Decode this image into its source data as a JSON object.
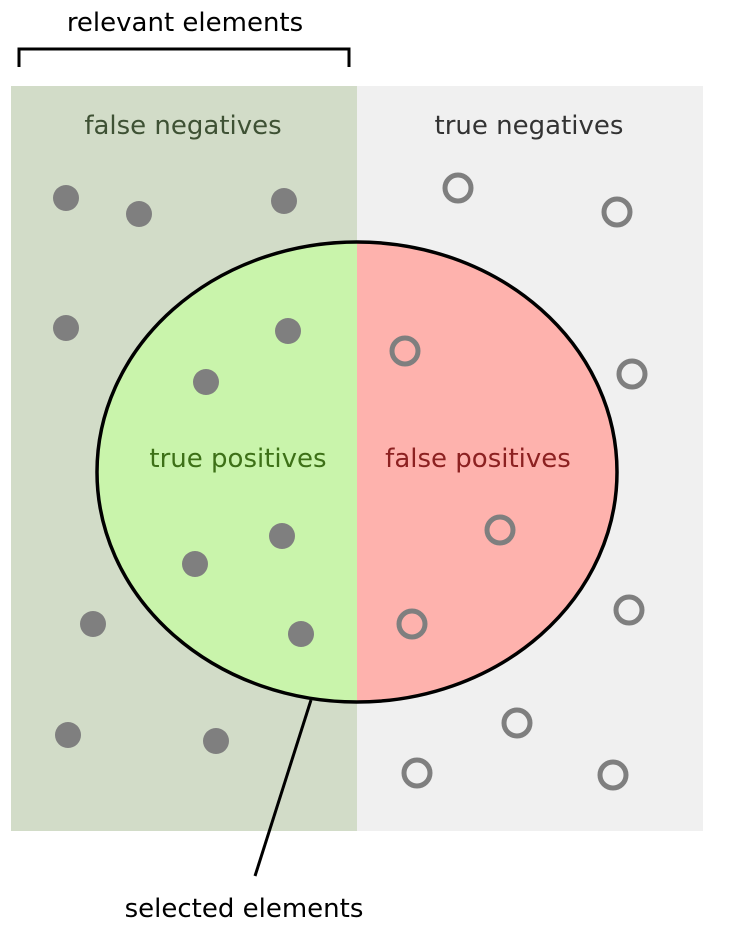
{
  "labels": {
    "relevant_elements": "relevant elements",
    "false_negatives": "false negatives",
    "true_negatives": "true negatives",
    "true_positives": "true positives",
    "false_positives": "false positives",
    "selected_elements": "selected elements"
  },
  "colors": {
    "relevant_region": "#d2dcc8",
    "irrelevant_region": "#f0f0f0",
    "true_positive_fill": "#c9f4ab",
    "false_positive_fill": "#feb2ad",
    "dot": "#7f7f7f",
    "outline": "#000000",
    "false_negatives_text": "#3e5134",
    "true_negatives_text": "#333333",
    "true_positives_text": "#3d7017",
    "false_positives_text": "#8c2121",
    "caption_text": "#000000"
  },
  "legend_icons": {
    "relevant_element": "filled-dot",
    "non_relevant_element": "hollow-ring"
  }
}
